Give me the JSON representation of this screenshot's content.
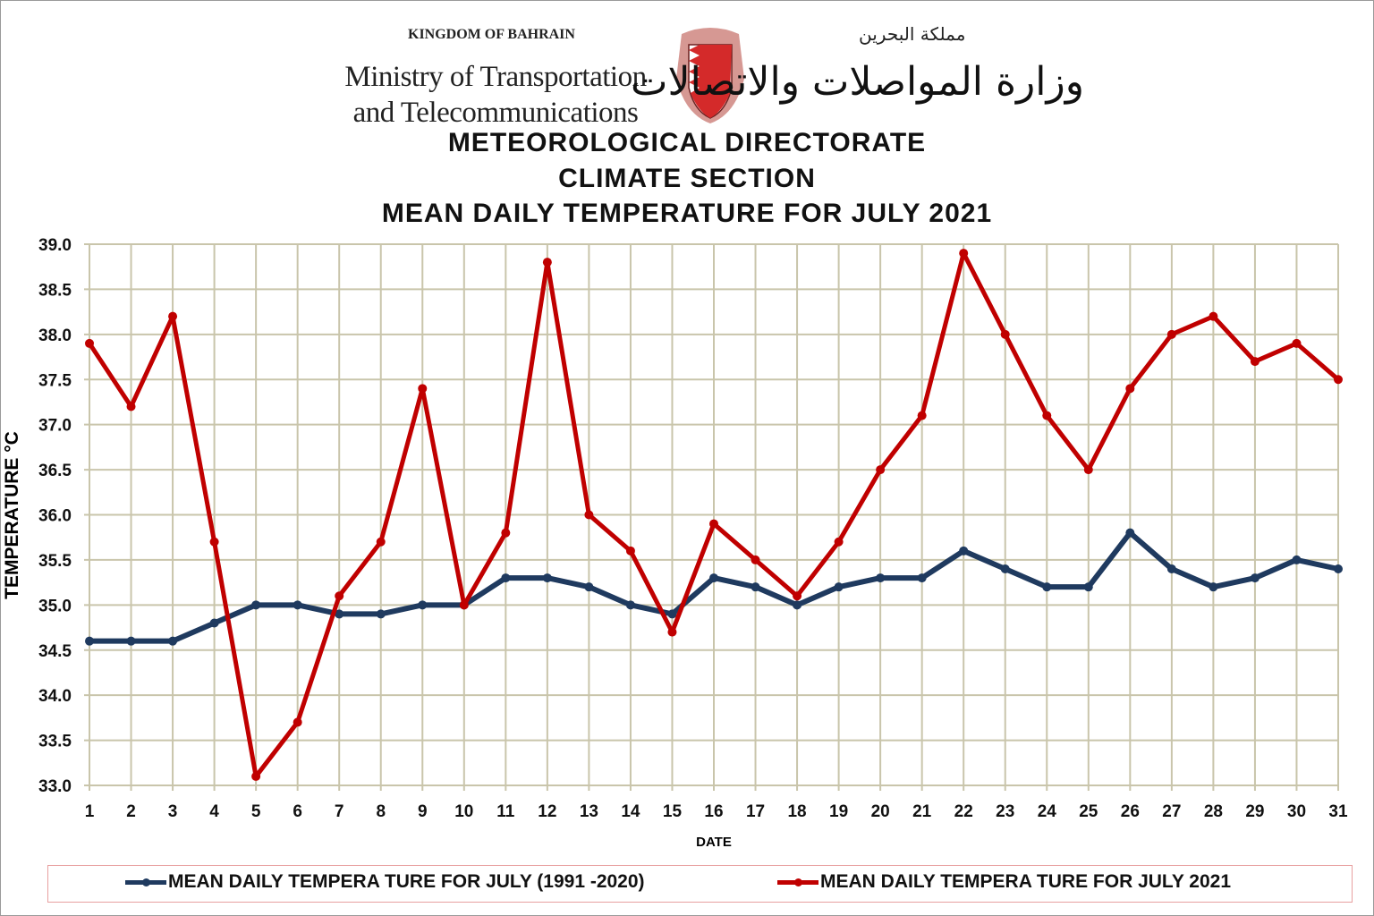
{
  "header": {
    "kingdom": "KINGDOM OF BAHRAIN",
    "ministry_line1": "Ministry of Transportation",
    "ministry_line2": "and Telecommunications",
    "kingdom_ar": "مملكة البحرين",
    "ministry_ar": "وزارة المواصلات والاتصالات",
    "emblem_colors": {
      "shield": "#d42a2a",
      "mantle": "#c0392b"
    }
  },
  "chart_data": {
    "type": "line",
    "title": [
      "METEOROLOGICAL  DIRECTORATE",
      "CLIMATE  SECTION",
      "MEAN  DAILY  TEMPERATURE  FOR JULY 2021"
    ],
    "xlabel": "DATE",
    "ylabel": "TEMPERATURE °C",
    "ylim": [
      33.0,
      39.0
    ],
    "yticks": [
      "33.0",
      "33.5",
      "34.0",
      "34.5",
      "35.0",
      "35.5",
      "36.0",
      "36.5",
      "37.0",
      "37.5",
      "38.0",
      "38.5",
      "39.0"
    ],
    "x": [
      1,
      2,
      3,
      4,
      5,
      6,
      7,
      8,
      9,
      10,
      11,
      12,
      13,
      14,
      15,
      16,
      17,
      18,
      19,
      20,
      21,
      22,
      23,
      24,
      25,
      26,
      27,
      28,
      29,
      30,
      31
    ],
    "grid": true,
    "legend": "bottom",
    "series": [
      {
        "name": "MEAN DAILY TEMPERA TURE FOR JULY (1991 -2020)",
        "color": "#1f3a5f",
        "values": [
          34.6,
          34.6,
          34.6,
          34.8,
          35.0,
          35.0,
          34.9,
          34.9,
          35.0,
          35.0,
          35.3,
          35.3,
          35.2,
          35.0,
          34.9,
          35.3,
          35.2,
          35.0,
          35.2,
          35.3,
          35.3,
          35.6,
          35.4,
          35.2,
          35.2,
          35.8,
          35.4,
          35.2,
          35.3,
          35.5,
          35.4
        ]
      },
      {
        "name": "MEAN DAILY TEMPERA TURE FOR JULY 2021",
        "color": "#c00000",
        "values": [
          37.9,
          37.2,
          38.2,
          35.7,
          33.1,
          33.7,
          35.1,
          35.7,
          37.4,
          35.0,
          35.8,
          38.8,
          36.0,
          35.6,
          34.7,
          35.9,
          35.5,
          35.1,
          35.7,
          36.5,
          37.1,
          38.9,
          38.0,
          37.1,
          36.5,
          37.4,
          38.0,
          38.2,
          37.7,
          37.9,
          37.5
        ]
      }
    ]
  }
}
